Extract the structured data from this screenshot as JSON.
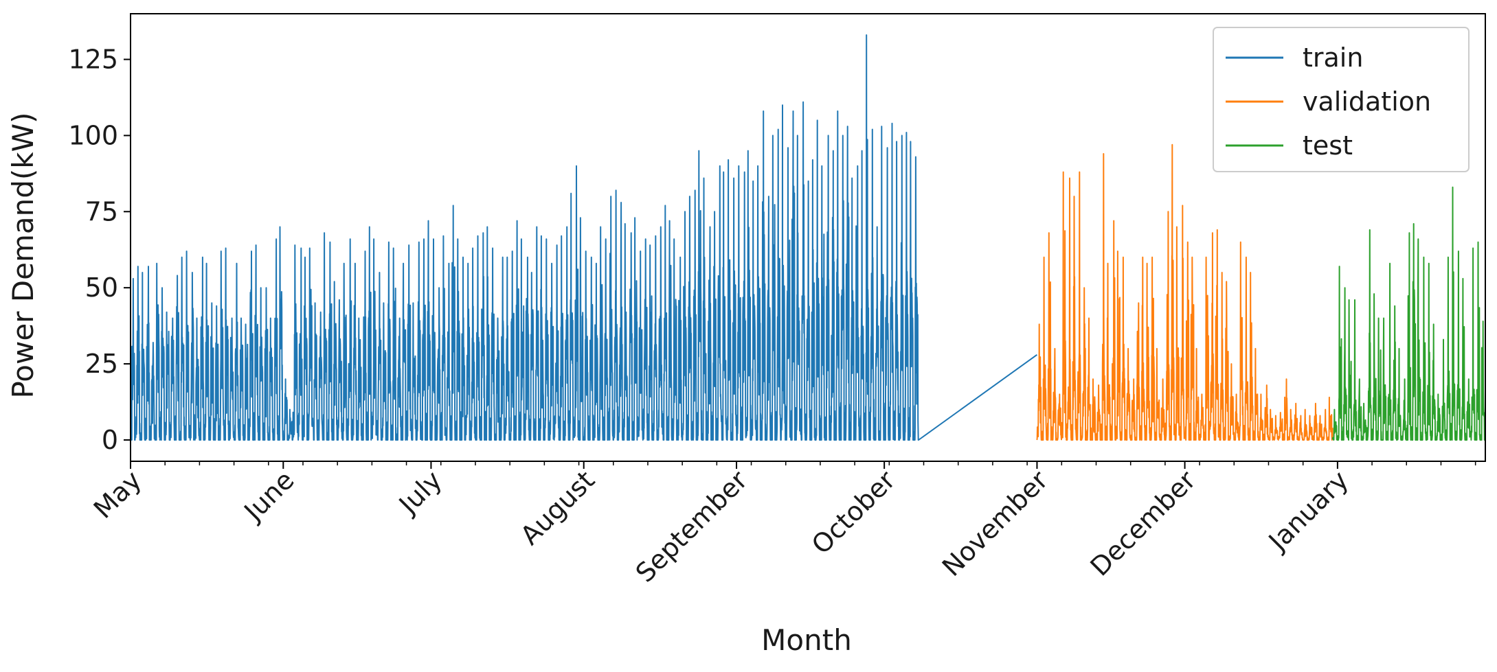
{
  "chart_data": {
    "type": "line",
    "title": "",
    "xlabel": "Month",
    "ylabel": "Power Demand(kW)",
    "ylim": [
      -7,
      140
    ],
    "yticks": [
      0,
      25,
      50,
      75,
      100,
      125
    ],
    "xlim": [
      "2022-05-01",
      "2023-01-31"
    ],
    "xticks": [
      {
        "label": "May",
        "date": "2022-05-01"
      },
      {
        "label": "June",
        "date": "2022-06-01"
      },
      {
        "label": "July",
        "date": "2022-07-01"
      },
      {
        "label": "August",
        "date": "2022-08-01"
      },
      {
        "label": "September",
        "date": "2022-09-01"
      },
      {
        "label": "October",
        "date": "2022-10-01"
      },
      {
        "label": "November",
        "date": "2022-11-01"
      },
      {
        "label": "December",
        "date": "2022-12-01"
      },
      {
        "label": "January",
        "date": "2023-01-01"
      }
    ],
    "grid": false,
    "legend_position": "top-right",
    "series": [
      {
        "name": "train",
        "color": "#1f77b4",
        "start": "2022-05-01",
        "end": "2022-11-01",
        "daily_peaks": [
          53,
          57,
          55,
          57,
          32,
          58,
          50,
          42,
          40,
          54,
          60,
          62,
          55,
          40,
          60,
          58,
          45,
          44,
          62,
          63,
          40,
          58,
          40,
          38,
          62,
          64,
          50,
          50,
          40,
          66,
          70,
          20,
          10,
          64,
          63,
          60,
          63,
          45,
          42,
          68,
          65,
          52,
          46,
          58,
          66,
          58,
          40,
          62,
          70,
          66,
          55,
          45,
          65,
          63,
          40,
          58,
          64,
          45,
          65,
          66,
          72,
          66,
          50,
          67,
          58,
          77,
          66,
          60,
          58,
          63,
          67,
          68,
          70,
          63,
          40,
          60,
          60,
          62,
          72,
          66,
          60,
          55,
          70,
          67,
          66,
          58,
          64,
          67,
          70,
          81,
          90,
          73,
          62,
          60,
          58,
          70,
          66,
          80,
          82,
          78,
          71,
          68,
          73,
          62,
          66,
          64,
          67,
          70,
          77,
          72,
          66,
          60,
          75,
          80,
          82,
          95,
          86,
          70,
          75,
          90,
          88,
          92,
          86,
          90,
          88,
          95,
          85,
          90,
          108,
          80,
          100,
          102,
          110,
          96,
          108,
          100,
          111,
          85,
          92,
          105,
          90,
          100,
          95,
          108,
          100,
          103,
          86,
          90,
          95,
          133,
          102,
          70,
          103,
          96,
          104,
          98,
          100,
          101,
          98,
          93
        ],
        "daily_means": [
          22,
          22,
          20,
          22,
          15,
          22,
          22,
          20,
          18,
          22,
          22,
          22,
          22,
          15,
          22,
          22,
          18,
          18,
          22,
          22,
          17,
          22,
          17,
          16,
          22,
          22,
          20,
          20,
          16,
          22,
          22,
          8,
          4,
          22,
          22,
          22,
          22,
          18,
          17,
          23,
          23,
          20,
          18,
          22,
          23,
          22,
          17,
          22,
          24,
          23,
          21,
          18,
          22,
          22,
          17,
          22,
          23,
          18,
          22,
          23,
          24,
          23,
          20,
          23,
          22,
          25,
          23,
          22,
          22,
          22,
          23,
          23,
          24,
          22,
          17,
          22,
          22,
          22,
          24,
          23,
          22,
          21,
          24,
          23,
          23,
          22,
          22,
          23,
          24,
          26,
          27,
          24,
          22,
          22,
          22,
          24,
          23,
          26,
          26,
          25,
          24,
          23,
          24,
          22,
          23,
          22,
          23,
          24,
          25,
          24,
          23,
          22,
          25,
          26,
          26,
          28,
          27,
          24,
          25,
          28,
          27,
          28,
          27,
          28,
          27,
          29,
          26,
          28,
          31,
          27,
          30,
          30,
          31,
          29,
          31,
          30,
          32,
          27,
          28,
          31,
          28,
          30,
          29,
          31,
          30,
          31,
          27,
          28,
          29,
          34,
          30,
          24,
          31,
          29,
          31,
          29,
          30,
          30,
          29,
          28
        ]
      },
      {
        "name": "validation",
        "color": "#ff7f0e",
        "start": "2022-11-01",
        "end": "2022-12-31",
        "daily_peaks": [
          38,
          60,
          68,
          30,
          15,
          88,
          86,
          80,
          88,
          50,
          40,
          20,
          18,
          94,
          58,
          72,
          62,
          60,
          30,
          20,
          45,
          60,
          58,
          60,
          30,
          20,
          75,
          97,
          70,
          77,
          65,
          60,
          30,
          15,
          60,
          68,
          69,
          55,
          52,
          25,
          15,
          65,
          60,
          55,
          30,
          15,
          18,
          10,
          8,
          9,
          20,
          10,
          12,
          8,
          10,
          8,
          12,
          8,
          10,
          14
        ],
        "daily_means": [
          14,
          14,
          16,
          10,
          6,
          18,
          18,
          16,
          18,
          13,
          11,
          6,
          6,
          18,
          14,
          16,
          14,
          14,
          9,
          6,
          12,
          14,
          14,
          14,
          9,
          6,
          16,
          18,
          16,
          16,
          14,
          14,
          9,
          6,
          14,
          15,
          15,
          13,
          12,
          8,
          5,
          14,
          14,
          13,
          9,
          5,
          5,
          3,
          2,
          3,
          5,
          3,
          4,
          2,
          3,
          2,
          4,
          2,
          3,
          4
        ]
      },
      {
        "name": "test",
        "color": "#2ca02c",
        "start": "2022-12-31",
        "end": "2023-01-31",
        "daily_peaks": [
          10,
          57,
          50,
          46,
          46,
          20,
          12,
          69,
          48,
          40,
          40,
          58,
          44,
          30,
          20,
          68,
          71,
          66,
          60,
          58,
          38,
          15,
          33,
          60,
          83,
          62,
          53,
          20,
          63,
          65,
          39
        ],
        "daily_means": [
          3,
          10,
          10,
          9,
          9,
          5,
          3,
          12,
          10,
          9,
          9,
          11,
          9,
          7,
          5,
          12,
          13,
          12,
          11,
          11,
          8,
          4,
          7,
          11,
          13,
          11,
          10,
          5,
          11,
          11,
          8
        ]
      }
    ]
  }
}
